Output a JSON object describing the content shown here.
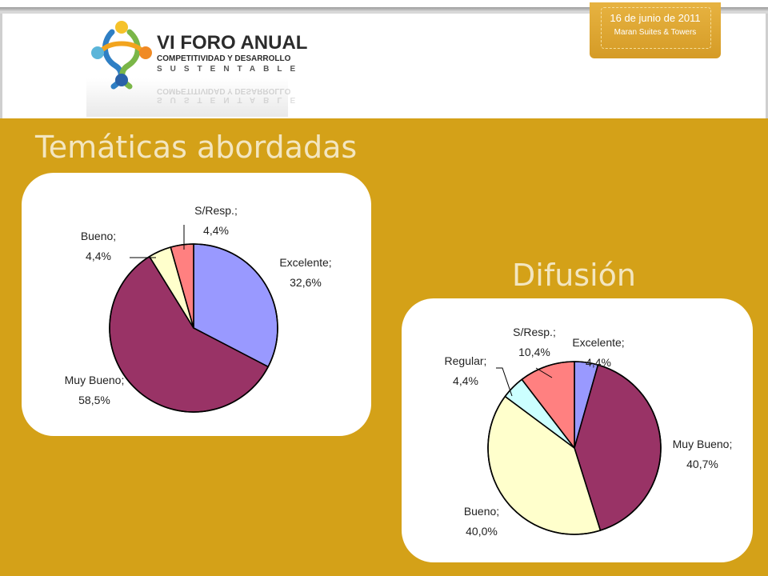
{
  "header": {
    "logo": {
      "line1": "VI FORO ANUAL",
      "line2": "COMPETITIVIDAD Y DESARROLLO",
      "line3": "SUSTENTABLE"
    },
    "badge": {
      "date": "16 de junio de 2011",
      "place": "Maran Suites & Towers"
    }
  },
  "titles": {
    "tematicas": "Temáticas abordadas",
    "difusion": "Difusión"
  },
  "chart_data": [
    {
      "type": "pie",
      "title": "Temáticas abordadas",
      "slices": [
        {
          "label": "Excelente;",
          "pct_text": "32,6%",
          "value": 32.6,
          "color": "#9999ff"
        },
        {
          "label": "Muy Bueno;",
          "pct_text": "58,5%",
          "value": 58.5,
          "color": "#993366"
        },
        {
          "label": "Bueno;",
          "pct_text": "4,4%",
          "value": 4.4,
          "color": "#ffffcc"
        },
        {
          "label": "S/Resp.;",
          "pct_text": "4,4%",
          "value": 4.4,
          "color": "#ff8080"
        }
      ]
    },
    {
      "type": "pie",
      "title": "Difusión",
      "slices": [
        {
          "label": "Excelente;",
          "pct_text": "4,4%",
          "value": 4.4,
          "color": "#9999ff"
        },
        {
          "label": "Muy Bueno;",
          "pct_text": "40,7%",
          "value": 40.7,
          "color": "#993366"
        },
        {
          "label": "Bueno;",
          "pct_text": "40,0%",
          "value": 40.0,
          "color": "#ffffcc"
        },
        {
          "label": "Regular;",
          "pct_text": "4,4%",
          "value": 4.4,
          "color": "#ccffff"
        },
        {
          "label": "S/Resp.;",
          "pct_text": "10,4%",
          "value": 10.4,
          "color": "#ff8080"
        }
      ]
    }
  ]
}
